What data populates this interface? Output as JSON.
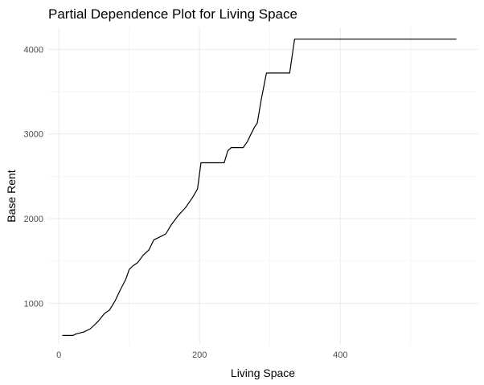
{
  "chart_data": {
    "type": "line",
    "title": "Partial Dependence Plot for Living Space",
    "xlabel": "Living Space",
    "ylabel": "Base Rent",
    "xlim": [
      -15,
      595
    ],
    "ylim": [
      510,
      4260
    ],
    "x_ticks": [
      0,
      200,
      400
    ],
    "y_ticks": [
      1000,
      2000,
      3000,
      4000
    ],
    "grid": true,
    "legend": "none",
    "line_color": "#000000",
    "series": [
      {
        "x": [
          5,
          20,
          25,
          35,
          45,
          55,
          65,
          72,
          80,
          88,
          95,
          100,
          105,
          112,
          120,
          128,
          135,
          145,
          152,
          160,
          170,
          180,
          190,
          197,
          202,
          210,
          220,
          228,
          235,
          240,
          245,
          255,
          262,
          268,
          272,
          278,
          282,
          288,
          295,
          305,
          315,
          328,
          335,
          345,
          360,
          400,
          450,
          500,
          565
        ],
        "y": [
          620,
          620,
          640,
          660,
          700,
          780,
          880,
          920,
          1030,
          1170,
          1280,
          1400,
          1440,
          1480,
          1570,
          1630,
          1750,
          1790,
          1820,
          1930,
          2040,
          2130,
          2250,
          2350,
          2660,
          2660,
          2660,
          2660,
          2660,
          2800,
          2840,
          2840,
          2840,
          2910,
          2980,
          3080,
          3130,
          3420,
          3720,
          3720,
          3720,
          3720,
          4120,
          4120,
          4120,
          4120,
          4120,
          4120,
          4120
        ]
      }
    ]
  }
}
